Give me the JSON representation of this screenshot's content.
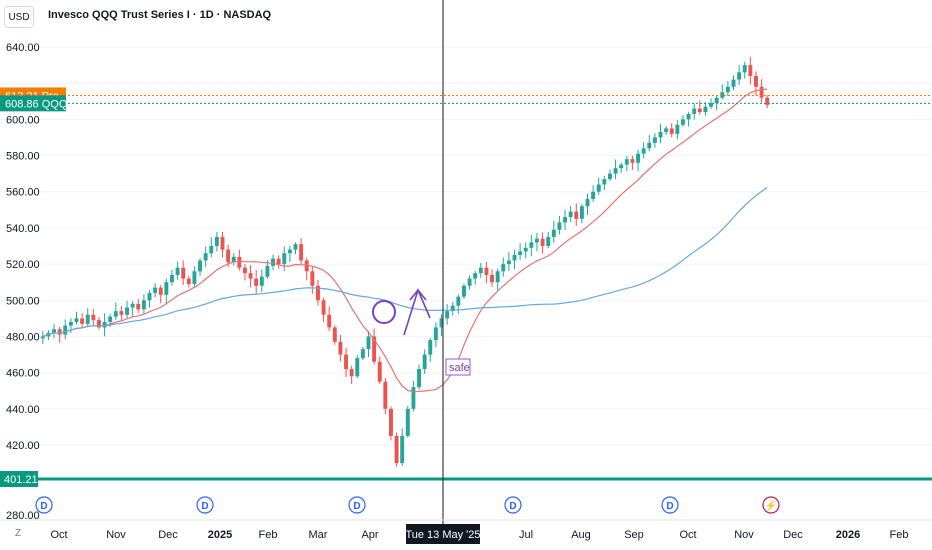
{
  "header": {
    "currency_button": "USD",
    "symbol_title": "Invesco QQQ Trust Series I · 1D · NASDAQ"
  },
  "price_scale": {
    "ticks": [
      "640.00",
      "600.00",
      "580.00",
      "560.00",
      "540.00",
      "520.00",
      "500.00",
      "480.00",
      "460.00",
      "440.00",
      "420.00",
      "280.00"
    ],
    "premarket_price": "613.21",
    "premarket_label": "Pre",
    "last_price": "608.86",
    "last_label": "QQQ",
    "support_level": "401.21"
  },
  "time_axis": {
    "labels": [
      "Oct",
      "Nov",
      "Dec",
      "2025",
      "Feb",
      "Mar",
      "Apr",
      "Jul",
      "Aug",
      "Sep",
      "Oct",
      "Nov",
      "Dec",
      "2026",
      "Feb"
    ],
    "crosshair_date": "Tue 13 May '25",
    "zoom_button": "Z"
  },
  "annotations": {
    "text_label": "safe"
  },
  "event_markers": [
    {
      "letter": "D",
      "kind": "dividend"
    },
    {
      "letter": "D",
      "kind": "dividend"
    },
    {
      "letter": "D",
      "kind": "dividend"
    },
    {
      "letter": "D",
      "kind": "dividend"
    },
    {
      "letter": "D",
      "kind": "dividend"
    },
    {
      "letter": "⚡",
      "kind": "split-earnings"
    }
  ],
  "colors": {
    "up": "#26a69a",
    "down": "#ef5350",
    "ma_fast": "#e57373",
    "ma_slow": "#64a8e0",
    "premarket": "#f57c00",
    "last": "#089981",
    "annotation": "#7b3fbf",
    "dividend": "#2962ff",
    "event": "#c2185b"
  },
  "chart_data": {
    "type": "candlestick",
    "ylim": [
      395,
      648
    ],
    "ma_fast_name": "",
    "ma_slow_name": "",
    "closes": [
      480,
      482,
      484,
      481,
      486,
      488,
      490,
      487,
      492,
      489,
      485,
      488,
      491,
      494,
      492,
      496,
      498,
      495,
      500,
      504,
      507,
      503,
      510,
      514,
      518,
      512,
      509,
      516,
      522,
      526,
      530,
      535,
      528,
      521,
      524,
      518,
      515,
      512,
      508,
      513,
      519,
      523,
      520,
      526,
      528,
      531,
      522,
      516,
      508,
      500,
      492,
      485,
      477,
      470,
      462,
      458,
      468,
      473,
      480,
      466,
      455,
      440,
      425,
      410,
      425,
      440,
      452,
      462,
      470,
      478,
      485,
      490,
      494,
      497,
      502,
      508,
      512,
      515,
      518,
      514,
      510,
      516,
      520,
      522,
      525,
      527,
      529,
      532,
      534,
      530,
      535,
      539,
      543,
      546,
      549,
      545,
      552,
      556,
      560,
      564,
      567,
      570,
      573,
      575,
      578,
      576,
      581,
      584,
      587,
      590,
      593,
      595,
      592,
      597,
      600,
      603,
      606,
      604,
      607,
      609,
      612,
      615,
      618,
      622,
      626,
      630,
      624,
      618,
      612,
      608
    ],
    "opens_offset": [
      0
    ],
    "events_index": [
      0,
      24,
      47,
      70,
      94,
      121
    ]
  }
}
